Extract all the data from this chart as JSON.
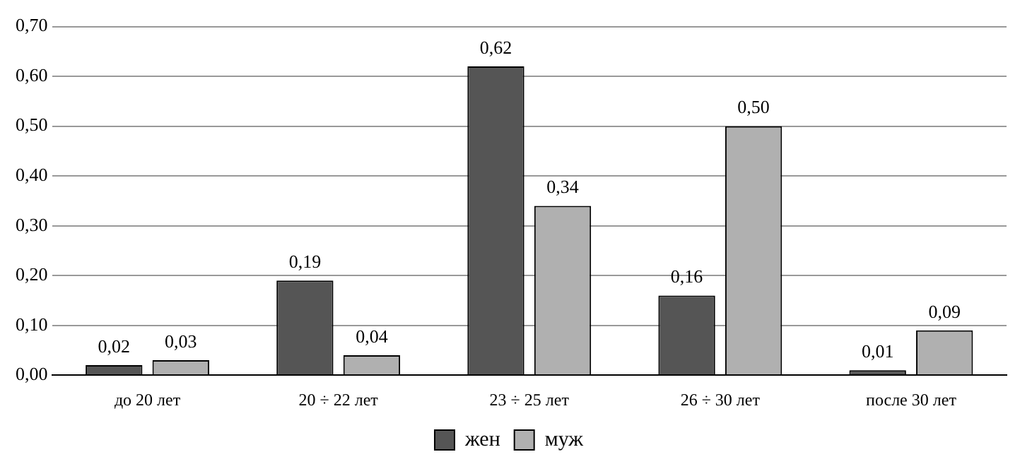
{
  "chart_data": {
    "type": "bar",
    "categories": [
      "до 20 лет",
      "20 ÷ 22 лет",
      "23 ÷ 25 лет",
      "26 ÷ 30 лет",
      "после 30 лет"
    ],
    "series": [
      {
        "name": "жен",
        "color": "#555555",
        "values": [
          0.02,
          0.19,
          0.62,
          0.16,
          0.01
        ],
        "value_labels": [
          "0,02",
          "0,19",
          "0,62",
          "0,16",
          "0,01"
        ]
      },
      {
        "name": "муж",
        "color": "#b0b0b0",
        "values": [
          0.03,
          0.04,
          0.34,
          0.5,
          0.09
        ],
        "value_labels": [
          "0,03",
          "0,04",
          "0,34",
          "0,50",
          "0,09"
        ]
      }
    ],
    "ylim": [
      0,
      0.7
    ],
    "yticks": [
      {
        "value": 0,
        "label": "0,00"
      },
      {
        "value": 0.1,
        "label": "0,10"
      },
      {
        "value": 0.2,
        "label": "0,20"
      },
      {
        "value": 0.3,
        "label": "0,30"
      },
      {
        "value": 0.4,
        "label": "0,40"
      },
      {
        "value": 0.5,
        "label": "0,50"
      },
      {
        "value": 0.6,
        "label": "0,60"
      },
      {
        "value": 0.7,
        "label": "0,70"
      }
    ],
    "grid": "y",
    "legend": "bottom"
  }
}
